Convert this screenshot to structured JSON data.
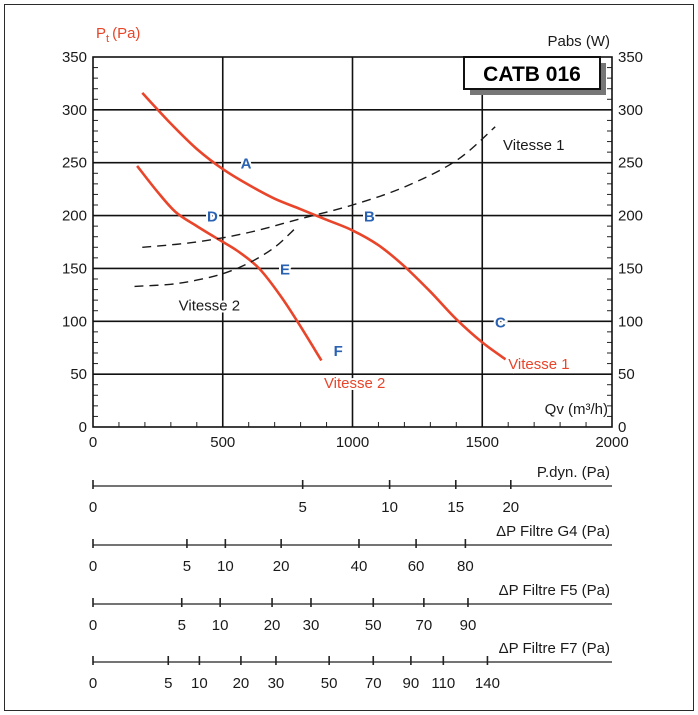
{
  "chart_data": {
    "type": "line",
    "title": "CATB 016",
    "xlabel": "Qv (m³/h)",
    "ylabel_left": "Pt (Pa)",
    "ylabel_left_main": "P",
    "ylabel_left_sub": "t",
    "ylabel_left_unit": "(Pa)",
    "ylabel_right": "Pabs (W)",
    "xlim": [
      0,
      2000
    ],
    "ylim": [
      0,
      350
    ],
    "x_ticks": [
      0,
      500,
      1000,
      1500,
      2000
    ],
    "x_tick_labels": [
      "0",
      "500",
      "1000",
      "1500",
      "2000"
    ],
    "y_ticks": [
      0,
      50,
      100,
      150,
      200,
      250,
      300,
      350
    ],
    "y_tick_labels": [
      "0",
      "50",
      "100",
      "150",
      "200",
      "250",
      "300",
      "350"
    ],
    "grid": true,
    "series": [
      {
        "name": "Vitesse 1",
        "kind": "pressure",
        "color": "#e8452a",
        "x": [
          190,
          300,
          400,
          500,
          600,
          700,
          800,
          900,
          1000,
          1100,
          1200,
          1300,
          1400,
          1500,
          1590
        ],
        "y": [
          316,
          287,
          263,
          244,
          229,
          216,
          206,
          196,
          186,
          172,
          152,
          128,
          102,
          80,
          64
        ]
      },
      {
        "name": "Vitesse 2",
        "kind": "pressure",
        "color": "#e8452a",
        "x": [
          170,
          250,
          320,
          400,
          480,
          560,
          640,
          720,
          800,
          880
        ],
        "y": [
          247,
          222,
          203,
          190,
          178,
          166,
          150,
          125,
          95,
          63
        ]
      },
      {
        "name": "Vitesse 1",
        "kind": "power",
        "color": "#1a1a1a",
        "x": [
          190,
          400,
          600,
          800,
          1000,
          1200,
          1400,
          1550
        ],
        "y": [
          170,
          175,
          184,
          197,
          210,
          227,
          252,
          284
        ]
      },
      {
        "name": "Vitesse 2",
        "kind": "power",
        "color": "#1a1a1a",
        "x": [
          160,
          300,
          400,
          500,
          600,
          700,
          780
        ],
        "y": [
          133,
          135,
          139,
          145,
          155,
          170,
          188
        ]
      }
    ],
    "curve_labels": [
      {
        "text": "Vitesse 1",
        "x": 1600,
        "y": 55,
        "color": "red"
      },
      {
        "text": "Vitesse 2",
        "x": 890,
        "y": 37,
        "color": "red"
      },
      {
        "text": "Vitesse 1",
        "x": 1580,
        "y": 262,
        "color": "ink"
      },
      {
        "text": "Vitesse 2",
        "x": 330,
        "y": 110,
        "color": "ink"
      }
    ],
    "points": [
      {
        "label": "A",
        "x": 590,
        "y": 250
      },
      {
        "label": "B",
        "x": 1065,
        "y": 200
      },
      {
        "label": "C",
        "x": 1570,
        "y": 100
      },
      {
        "label": "D",
        "x": 460,
        "y": 200
      },
      {
        "label": "E",
        "x": 740,
        "y": 150
      },
      {
        "label": "F",
        "x": 945,
        "y": 73
      }
    ],
    "secondary_scales": [
      {
        "label": "P.dyn. (Pa)",
        "ticks": [
          {
            "x": 0,
            "label": "0"
          },
          {
            "x": 808,
            "label": "5"
          },
          {
            "x": 1143,
            "label": "10"
          },
          {
            "x": 1398,
            "label": "15"
          },
          {
            "x": 1610,
            "label": "20"
          }
        ]
      },
      {
        "label": "ΔP Filtre G4 (Pa)",
        "ticks": [
          {
            "x": 0,
            "label": "0"
          },
          {
            "x": 362,
            "label": "5"
          },
          {
            "x": 510,
            "label": "10"
          },
          {
            "x": 725,
            "label": "20"
          },
          {
            "x": 1025,
            "label": "40"
          },
          {
            "x": 1245,
            "label": "60"
          },
          {
            "x": 1435,
            "label": "80"
          }
        ]
      },
      {
        "label": "ΔP Filtre F5 (Pa)",
        "ticks": [
          {
            "x": 0,
            "label": "0"
          },
          {
            "x": 342,
            "label": "5"
          },
          {
            "x": 490,
            "label": "10"
          },
          {
            "x": 690,
            "label": "20"
          },
          {
            "x": 840,
            "label": "30"
          },
          {
            "x": 1080,
            "label": "50"
          },
          {
            "x": 1275,
            "label": "70"
          },
          {
            "x": 1445,
            "label": "90"
          }
        ]
      },
      {
        "label": "ΔP Filtre F7 (Pa)",
        "ticks": [
          {
            "x": 0,
            "label": "0"
          },
          {
            "x": 290,
            "label": "5"
          },
          {
            "x": 410,
            "label": "10"
          },
          {
            "x": 570,
            "label": "20"
          },
          {
            "x": 705,
            "label": "30"
          },
          {
            "x": 910,
            "label": "50"
          },
          {
            "x": 1080,
            "label": "70"
          },
          {
            "x": 1225,
            "label": "90"
          },
          {
            "x": 1350,
            "label": "110"
          },
          {
            "x": 1520,
            "label": "140"
          }
        ]
      }
    ]
  }
}
